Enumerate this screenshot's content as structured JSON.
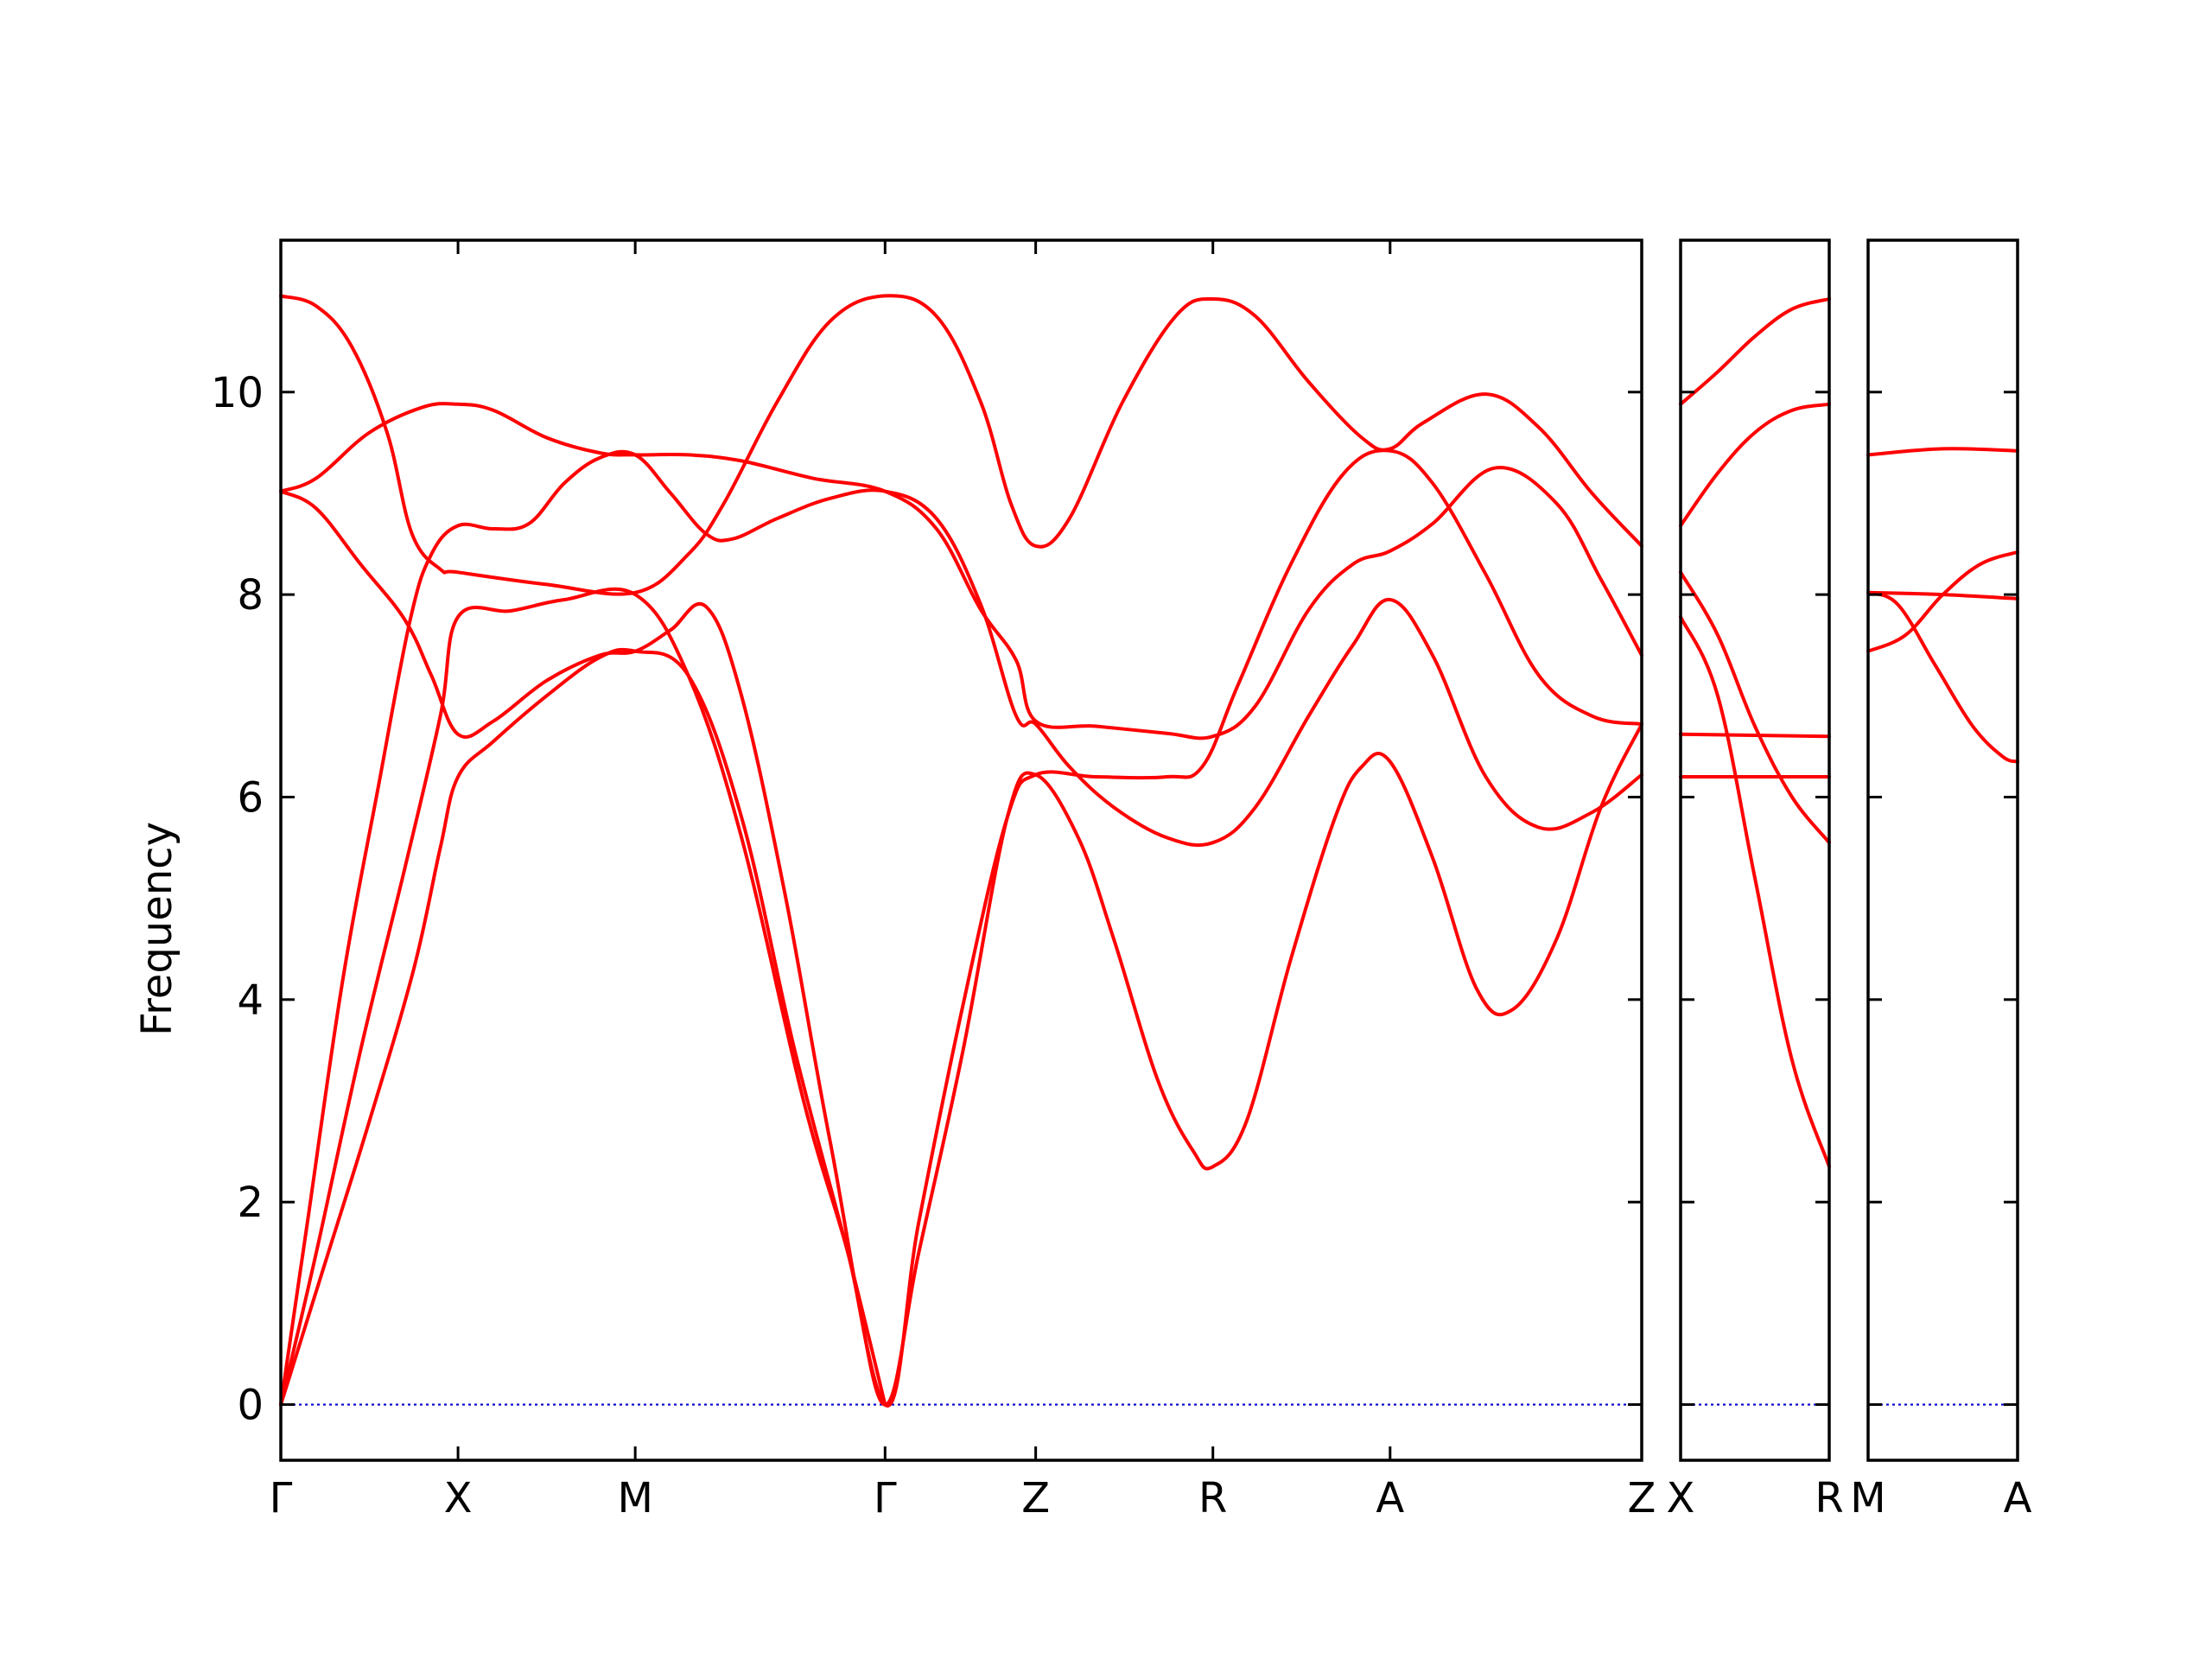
{
  "chart_data": {
    "type": "line",
    "ylabel": "Frequency",
    "ylim": [
      -0.55,
      11.5
    ],
    "yticks": [
      0,
      2,
      4,
      6,
      8,
      10
    ],
    "colors": {
      "band": "#ff0000",
      "zero_line": "#0000cc",
      "frame": "#000000"
    },
    "panels": [
      {
        "id": "main",
        "xlim": [
          0,
          7.68
        ],
        "kpoints": [
          {
            "label": "Γ",
            "x": 0
          },
          {
            "label": "X",
            "x": 1.0
          },
          {
            "label": "M",
            "x": 2.0
          },
          {
            "label": "Γ",
            "x": 3.41
          },
          {
            "label": "Z",
            "x": 4.26
          },
          {
            "label": "R",
            "x": 5.26
          },
          {
            "label": "A",
            "x": 6.26
          },
          {
            "label": "Z",
            "x": 7.68
          }
        ],
        "bands": [
          [
            [
              0,
              10.95
            ],
            [
              0.2,
              10.85
            ],
            [
              0.4,
              10.45
            ],
            [
              0.6,
              9.6
            ],
            [
              0.74,
              8.6
            ],
            [
              0.9,
              8.25
            ],
            [
              1.0,
              8.22
            ],
            [
              1.5,
              8.1
            ],
            [
              2.0,
              8.02
            ],
            [
              2.3,
              8.4
            ],
            [
              2.5,
              8.9
            ],
            [
              2.8,
              9.9
            ],
            [
              3.1,
              10.7
            ],
            [
              3.41,
              10.95
            ],
            [
              3.7,
              10.75
            ],
            [
              3.95,
              9.9
            ],
            [
              4.12,
              8.9
            ],
            [
              4.26,
              8.48
            ],
            [
              4.45,
              8.75
            ],
            [
              4.75,
              9.9
            ],
            [
              5.05,
              10.75
            ],
            [
              5.26,
              10.92
            ],
            [
              5.5,
              10.75
            ],
            [
              5.8,
              10.1
            ],
            [
              6.1,
              9.55
            ],
            [
              6.26,
              9.44
            ],
            [
              6.45,
              9.7
            ],
            [
              6.8,
              9.98
            ],
            [
              7.1,
              9.65
            ],
            [
              7.4,
              9.0
            ],
            [
              7.68,
              8.48
            ]
          ],
          [
            [
              0,
              9.02
            ],
            [
              0.2,
              9.15
            ],
            [
              0.5,
              9.6
            ],
            [
              0.8,
              9.85
            ],
            [
              1.0,
              9.88
            ],
            [
              1.2,
              9.82
            ],
            [
              1.5,
              9.55
            ],
            [
              1.8,
              9.4
            ],
            [
              2.0,
              9.38
            ],
            [
              2.3,
              9.38
            ],
            [
              2.6,
              9.32
            ],
            [
              3.0,
              9.15
            ],
            [
              3.41,
              9.02
            ],
            [
              3.7,
              8.65
            ],
            [
              3.95,
              7.85
            ],
            [
              4.15,
              7.35
            ],
            [
              4.26,
              6.75
            ],
            [
              4.6,
              6.7
            ],
            [
              5.0,
              6.63
            ],
            [
              5.26,
              6.6
            ],
            [
              5.5,
              6.9
            ],
            [
              5.8,
              7.85
            ],
            [
              6.05,
              8.3
            ],
            [
              6.26,
              8.43
            ],
            [
              6.5,
              8.7
            ],
            [
              6.85,
              9.25
            ],
            [
              7.2,
              8.9
            ],
            [
              7.45,
              8.15
            ],
            [
              7.68,
              7.4
            ]
          ],
          [
            [
              0,
              9.02
            ],
            [
              0.2,
              8.85
            ],
            [
              0.45,
              8.3
            ],
            [
              0.7,
              7.75
            ],
            [
              0.85,
              7.2
            ],
            [
              1.0,
              6.62
            ],
            [
              1.2,
              6.75
            ],
            [
              1.5,
              7.15
            ],
            [
              1.8,
              7.4
            ],
            [
              2.0,
              7.44
            ],
            [
              2.2,
              7.65
            ],
            [
              2.4,
              7.88
            ],
            [
              2.6,
              7.0
            ],
            [
              2.85,
              5.0
            ],
            [
              3.1,
              2.6
            ],
            [
              3.41,
              0
            ],
            [
              3.6,
              1.8
            ],
            [
              3.85,
              3.95
            ],
            [
              4.1,
              5.8
            ],
            [
              4.26,
              6.22
            ],
            [
              4.6,
              6.2
            ],
            [
              5.0,
              6.2
            ],
            [
              5.2,
              6.3
            ],
            [
              5.4,
              7.1
            ],
            [
              5.7,
              8.3
            ],
            [
              6.0,
              9.2
            ],
            [
              6.26,
              9.42
            ],
            [
              6.5,
              9.1
            ],
            [
              6.8,
              8.2
            ],
            [
              7.1,
              7.2
            ],
            [
              7.4,
              6.8
            ],
            [
              7.68,
              6.72
            ]
          ],
          [
            [
              0,
              0
            ],
            [
              0.15,
              1.8
            ],
            [
              0.35,
              4.2
            ],
            [
              0.55,
              6.1
            ],
            [
              0.73,
              7.75
            ],
            [
              0.85,
              8.4
            ],
            [
              1.0,
              8.68
            ],
            [
              1.2,
              8.65
            ],
            [
              1.4,
              8.7
            ],
            [
              1.6,
              9.1
            ],
            [
              1.8,
              9.35
            ],
            [
              2.0,
              9.38
            ],
            [
              2.2,
              9.0
            ],
            [
              2.4,
              8.6
            ],
            [
              2.55,
              8.55
            ],
            [
              2.8,
              8.75
            ],
            [
              3.1,
              8.95
            ],
            [
              3.41,
              9.02
            ],
            [
              3.7,
              8.75
            ],
            [
              3.95,
              7.9
            ],
            [
              4.15,
              6.8
            ],
            [
              4.26,
              6.72
            ],
            [
              4.45,
              6.3
            ],
            [
              4.7,
              5.9
            ],
            [
              5.0,
              5.6
            ],
            [
              5.26,
              5.55
            ],
            [
              5.5,
              5.9
            ],
            [
              5.8,
              6.8
            ],
            [
              6.05,
              7.5
            ],
            [
              6.26,
              7.95
            ],
            [
              6.5,
              7.4
            ],
            [
              6.8,
              6.2
            ],
            [
              7.1,
              5.7
            ],
            [
              7.4,
              5.85
            ],
            [
              7.68,
              6.22
            ]
          ],
          [
            [
              0,
              0
            ],
            [
              0.2,
              1.5
            ],
            [
              0.45,
              3.5
            ],
            [
              0.7,
              5.3
            ],
            [
              0.9,
              6.8
            ],
            [
              1.0,
              7.78
            ],
            [
              1.3,
              7.84
            ],
            [
              1.6,
              7.95
            ],
            [
              2.0,
              8.0
            ],
            [
              2.3,
              7.2
            ],
            [
              2.6,
              5.6
            ],
            [
              2.95,
              3.0
            ],
            [
              3.2,
              1.5
            ],
            [
              3.41,
              0
            ],
            [
              3.6,
              1.5
            ],
            [
              3.85,
              3.5
            ],
            [
              4.1,
              5.8
            ],
            [
              4.26,
              6.22
            ],
            [
              4.5,
              5.6
            ],
            [
              4.7,
              4.6
            ],
            [
              4.95,
              3.2
            ],
            [
              5.15,
              2.5
            ],
            [
              5.26,
              2.35
            ],
            [
              5.45,
              2.8
            ],
            [
              5.7,
              4.4
            ],
            [
              5.95,
              5.8
            ],
            [
              6.1,
              6.3
            ],
            [
              6.26,
              6.35
            ],
            [
              6.5,
              5.4
            ],
            [
              6.75,
              4.1
            ],
            [
              6.95,
              3.9
            ],
            [
              7.2,
              4.6
            ],
            [
              7.45,
              5.9
            ],
            [
              7.68,
              6.72
            ]
          ],
          [
            [
              0,
              0
            ],
            [
              0.25,
              1.4
            ],
            [
              0.5,
              2.8
            ],
            [
              0.75,
              4.3
            ],
            [
              0.9,
              5.5
            ],
            [
              1.0,
              6.2
            ],
            [
              1.2,
              6.55
            ],
            [
              1.5,
              7.0
            ],
            [
              1.8,
              7.38
            ],
            [
              2.0,
              7.44
            ],
            [
              2.3,
              7.2
            ],
            [
              2.6,
              5.8
            ],
            [
              2.9,
              3.5
            ],
            [
              3.2,
              1.5
            ],
            [
              3.41,
              0
            ]
          ]
        ]
      },
      {
        "id": "X-R",
        "xlim": [
          0,
          1
        ],
        "kpoints": [
          {
            "label": "X",
            "x": 0
          },
          {
            "label": "R",
            "x": 1
          }
        ],
        "bands": [
          [
            [
              0,
              9.88
            ],
            [
              0.25,
              10.2
            ],
            [
              0.5,
              10.55
            ],
            [
              0.75,
              10.82
            ],
            [
              1,
              10.92
            ]
          ],
          [
            [
              0,
              8.68
            ],
            [
              0.25,
              9.2
            ],
            [
              0.5,
              9.6
            ],
            [
              0.75,
              9.82
            ],
            [
              1,
              9.88
            ]
          ],
          [
            [
              0,
              8.22
            ],
            [
              0.25,
              7.6
            ],
            [
              0.5,
              6.7
            ],
            [
              0.75,
              6.0
            ],
            [
              1,
              5.55
            ]
          ],
          [
            [
              0,
              7.78
            ],
            [
              0.25,
              7.0
            ],
            [
              0.5,
              5.2
            ],
            [
              0.75,
              3.4
            ],
            [
              1,
              2.35
            ]
          ],
          [
            [
              0,
              6.62
            ],
            [
              0.5,
              6.61
            ],
            [
              1,
              6.6
            ]
          ],
          [
            [
              0,
              6.2
            ],
            [
              0.5,
              6.2
            ],
            [
              1,
              6.2
            ]
          ]
        ]
      },
      {
        "id": "M-A",
        "xlim": [
          0,
          1
        ],
        "kpoints": [
          {
            "label": "M",
            "x": 0
          },
          {
            "label": "A",
            "x": 1
          }
        ],
        "bands": [
          [
            [
              0,
              9.38
            ],
            [
              0.5,
              9.44
            ],
            [
              1,
              9.42
            ]
          ],
          [
            [
              0,
              7.44
            ],
            [
              0.25,
              7.6
            ],
            [
              0.5,
              8.0
            ],
            [
              0.75,
              8.3
            ],
            [
              1,
              8.42
            ]
          ],
          [
            [
              0,
              8.02
            ],
            [
              0.5,
              8.0
            ],
            [
              1,
              7.96
            ]
          ],
          [
            [
              0,
              8.02
            ],
            [
              0.2,
              7.9
            ],
            [
              0.45,
              7.3
            ],
            [
              0.7,
              6.7
            ],
            [
              0.9,
              6.4
            ],
            [
              1,
              6.35
            ]
          ]
        ]
      }
    ]
  }
}
